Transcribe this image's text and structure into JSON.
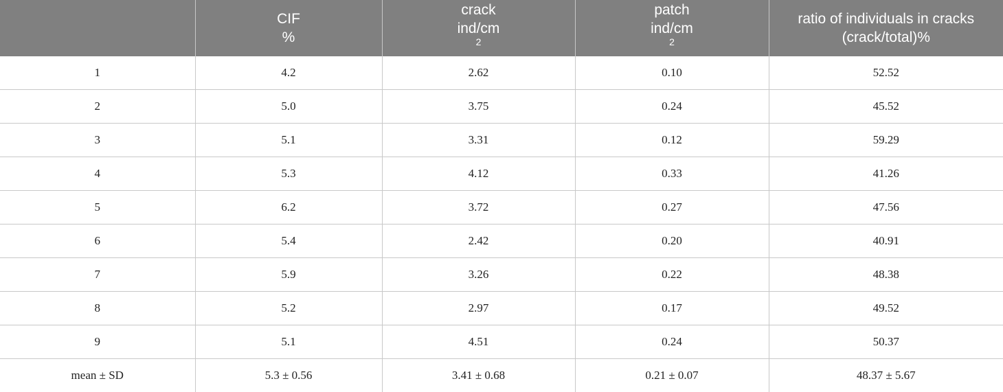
{
  "table": {
    "headers": [
      {
        "line1": "",
        "line2": "",
        "sup": ""
      },
      {
        "line1": "CIF",
        "line2": "%",
        "sup": ""
      },
      {
        "line1": "crack",
        "line2": "ind/cm",
        "sup": "2"
      },
      {
        "line1": "patch",
        "line2": "ind/cm",
        "sup": "2"
      },
      {
        "line1": "ratio of individuals in cracks",
        "line2": "(crack/total)%",
        "sup": ""
      }
    ],
    "rows": [
      [
        "1",
        "4.2",
        "2.62",
        "0.10",
        "52.52"
      ],
      [
        "2",
        "5.0",
        "3.75",
        "0.24",
        "45.52"
      ],
      [
        "3",
        "5.1",
        "3.31",
        "0.12",
        "59.29"
      ],
      [
        "4",
        "5.3",
        "4.12",
        "0.33",
        "41.26"
      ],
      [
        "5",
        "6.2",
        "3.72",
        "0.27",
        "47.56"
      ],
      [
        "6",
        "5.4",
        "2.42",
        "0.20",
        "40.91"
      ],
      [
        "7",
        "5.9",
        "3.26",
        "0.22",
        "48.38"
      ],
      [
        "8",
        "5.2",
        "2.97",
        "0.17",
        "49.52"
      ],
      [
        "9",
        "5.1",
        "4.51",
        "0.24",
        "50.37"
      ],
      [
        "mean ± SD",
        "5.3 ± 0.56",
        "3.41 ± 0.68",
        "0.21 ± 0.07",
        "48.37 ± 5.67"
      ]
    ]
  }
}
